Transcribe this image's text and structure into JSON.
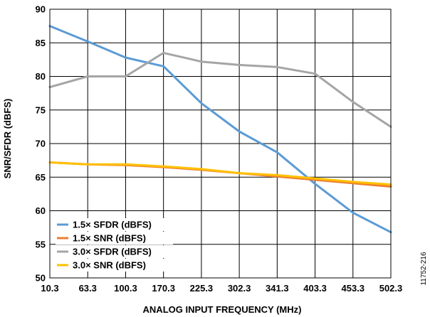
{
  "chart_data": {
    "type": "line",
    "x_categories": [
      "10.3",
      "63.3",
      "100.3",
      "170.3",
      "225.3",
      "302.3",
      "341.3",
      "403.3",
      "453.3",
      "502.3"
    ],
    "xlabel": "ANALOG INPUT FREQUENCY (MHz)",
    "ylabel": "SNR/SFDR (dBFS)",
    "ylim": [
      50,
      90
    ],
    "yticks": [
      50,
      55,
      60,
      65,
      70,
      75,
      80,
      85,
      90
    ],
    "grid": true,
    "legend_position": "bottom-left",
    "figure_id": "11752-216",
    "series": [
      {
        "name": "1.5× SFDR (dBFS)",
        "color": "#5b9bd5",
        "values": [
          87.5,
          85.2,
          82.8,
          81.5,
          76.0,
          71.8,
          68.7,
          64.0,
          59.7,
          56.8
        ]
      },
      {
        "name": "1.5× SNR (dBFS)",
        "color": "#ed7d31",
        "values": [
          67.2,
          66.9,
          66.8,
          66.5,
          66.1,
          65.6,
          65.1,
          64.6,
          64.1,
          63.6
        ]
      },
      {
        "name": "3.0× SFDR (dBFS)",
        "color": "#a5a5a5",
        "values": [
          78.4,
          80.0,
          80.0,
          83.5,
          82.2,
          81.7,
          81.4,
          80.4,
          76.2,
          72.5
        ]
      },
      {
        "name": "3.0× SNR (dBFS)",
        "color": "#ffc000",
        "values": [
          67.2,
          66.9,
          66.9,
          66.6,
          66.2,
          65.6,
          65.3,
          64.8,
          64.3,
          63.9
        ]
      }
    ]
  }
}
